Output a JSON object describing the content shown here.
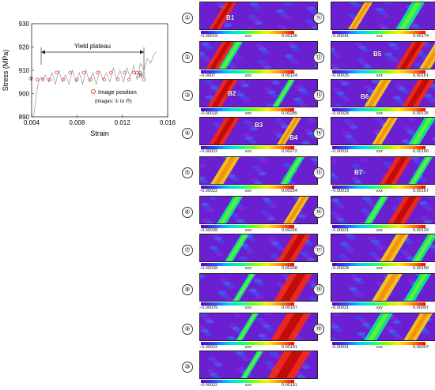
{
  "chart_data": {
    "type": "line",
    "xlabel": "Strain",
    "ylabel": "Stress (MPa)",
    "xlim": [
      0.004,
      0.016
    ],
    "ylim": [
      890,
      930
    ],
    "x_ticks": [
      "0.004",
      "0.008",
      "0.012",
      "0.016"
    ],
    "y_ticks": [
      "890",
      "900",
      "910",
      "920",
      "930"
    ],
    "annotation": "Yield plateau",
    "legend": {
      "marker_label": "Image position",
      "note": "(Images: ① to ⑲)"
    },
    "first_label": "①",
    "last_label": "⑲",
    "series": [
      {
        "x": [
          0.0042,
          0.0044,
          0.0046,
          0.0048,
          0.005,
          0.0052,
          0.0055,
          0.0058,
          0.0061,
          0.0064,
          0.0067,
          0.007,
          0.0073,
          0.0076,
          0.0079,
          0.0082,
          0.0085,
          0.0088,
          0.0091,
          0.0094,
          0.0097,
          0.01,
          0.0103,
          0.0106,
          0.0109,
          0.0112,
          0.0115,
          0.0118,
          0.0121,
          0.0124,
          0.0127,
          0.013,
          0.0133,
          0.0136,
          0.0139,
          0.0142,
          0.0145,
          0.0148,
          0.015
        ],
        "y": [
          891,
          899,
          905,
          907,
          906,
          908,
          905,
          909,
          904,
          910,
          905,
          908,
          904,
          910,
          905,
          909,
          904,
          910,
          905,
          909,
          904,
          910,
          906,
          909,
          905,
          911,
          906,
          910,
          905,
          911,
          907,
          912,
          906,
          913,
          910,
          915,
          913,
          917,
          918
        ]
      }
    ],
    "image_positions": {
      "x": [
        0.0045,
        0.005,
        0.0056,
        0.0062,
        0.0068,
        0.0074,
        0.008,
        0.0086,
        0.0092,
        0.0098,
        0.0104,
        0.011,
        0.0116,
        0.0122,
        0.0126,
        0.013,
        0.0133,
        0.0136,
        0.0139
      ],
      "y": [
        906,
        906,
        906,
        909,
        906,
        909,
        906,
        909,
        906,
        909,
        906,
        909,
        906,
        909,
        906,
        909,
        909,
        909,
        906
      ]
    }
  },
  "panels": [
    {
      "label": "①",
      "min": "−0.00019",
      "max": "0.00105",
      "sym": "εxx"
    },
    {
      "label": "②",
      "min": "−0.0007",
      "max": "0.00124",
      "sym": "εxx"
    },
    {
      "label": "③",
      "min": "−0.00018",
      "max": "0.00285",
      "sym": "εxx"
    },
    {
      "label": "④",
      "min": "−0.00022",
      "max": "0.00272",
      "sym": "εxx"
    },
    {
      "label": "⑤",
      "min": "−0.00022",
      "max": "0.00254",
      "sym": "εxx"
    },
    {
      "label": "⑥",
      "min": "−0.00028",
      "max": "0.00256",
      "sym": "εxx"
    },
    {
      "label": "⑦",
      "min": "−0.00028",
      "max": "0.00208",
      "sym": "εxx"
    },
    {
      "label": "⑧",
      "min": "−0.00029",
      "max": "0.00197",
      "sym": "εxx"
    },
    {
      "label": "⑨",
      "min": "−0.00022",
      "max": "0.00191",
      "sym": "εxx"
    },
    {
      "label": "⑩",
      "min": "−0.00022",
      "max": "0.00191",
      "sym": "εxx"
    },
    {
      "label": "⑪",
      "min": "−0.00041",
      "max": "0.00174",
      "sym": "εxx"
    },
    {
      "label": "⑫",
      "min": "−0.00025",
      "max": "0.00161",
      "sym": "εxx"
    },
    {
      "label": "⑬",
      "min": "−0.00028",
      "max": "0.00135",
      "sym": "εxx"
    },
    {
      "label": "⑭",
      "min": "−0.00031",
      "max": "0.00166",
      "sym": "εxx"
    },
    {
      "label": "⑮",
      "min": "−0.00019",
      "max": "0.00167",
      "sym": "εxx"
    },
    {
      "label": "⑯",
      "min": "−0.00031",
      "max": "0.00129",
      "sym": "εxx"
    },
    {
      "label": "⑰",
      "min": "−0.00028",
      "max": "0.00158",
      "sym": "εxx"
    },
    {
      "label": "⑱",
      "min": "−0.00031",
      "max": "0.00097",
      "sym": "εyy"
    },
    {
      "label": "⑲",
      "min": "−0.00031",
      "max": "0.00097",
      "sym": "εxx"
    }
  ],
  "band_labels": {
    "b1": "B1",
    "b2": "B2",
    "b3": "B3",
    "b4": "B4",
    "b5": "B5",
    "b6": "B6",
    "b7": "B7"
  },
  "colors": {
    "background": "#6a1fd0",
    "band_hot": "#ff2a00",
    "band_warm": "#ffe000",
    "band_mid": "#00ff8a",
    "marker": "#e0302a"
  }
}
